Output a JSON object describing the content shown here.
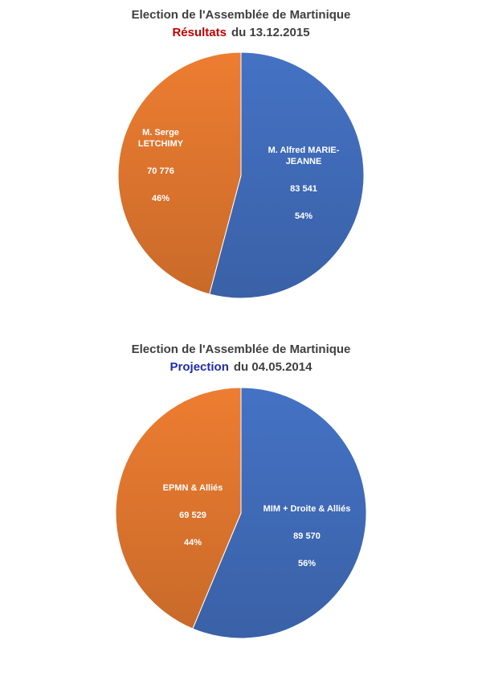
{
  "chart_data": [
    {
      "type": "pie",
      "title": "Election de l'Assemblée de Martinique",
      "subtitle_highlight": "Résultats",
      "subtitle_rest": "du 13.12.2015",
      "highlight_color": "#c00000",
      "slices": [
        {
          "label_lines": [
            "M. Alfred MARIE-",
            "JEANNE"
          ],
          "value": 83541,
          "value_label": "83 541",
          "percent_label": "54%",
          "color": "#4472c4"
        },
        {
          "label_lines": [
            "M. Serge",
            "LETCHIMY"
          ],
          "value": 70776,
          "value_label": "70 776",
          "percent_label": "46%",
          "color": "#ed7d31"
        }
      ]
    },
    {
      "type": "pie",
      "title": "Election de l'Assemblée de Martinique",
      "subtitle_highlight": "Projection",
      "subtitle_rest": "du  04.05.2014",
      "highlight_color": "#1f2ea8",
      "slices": [
        {
          "label_lines": [
            "MIM + Droite & Alliés"
          ],
          "value": 89570,
          "value_label": "89 570",
          "percent_label": "56%",
          "color": "#4472c4"
        },
        {
          "label_lines": [
            "EPMN & Alliés"
          ],
          "value": 69529,
          "value_label": "69 529",
          "percent_label": "44%",
          "color": "#ed7d31"
        }
      ]
    }
  ]
}
